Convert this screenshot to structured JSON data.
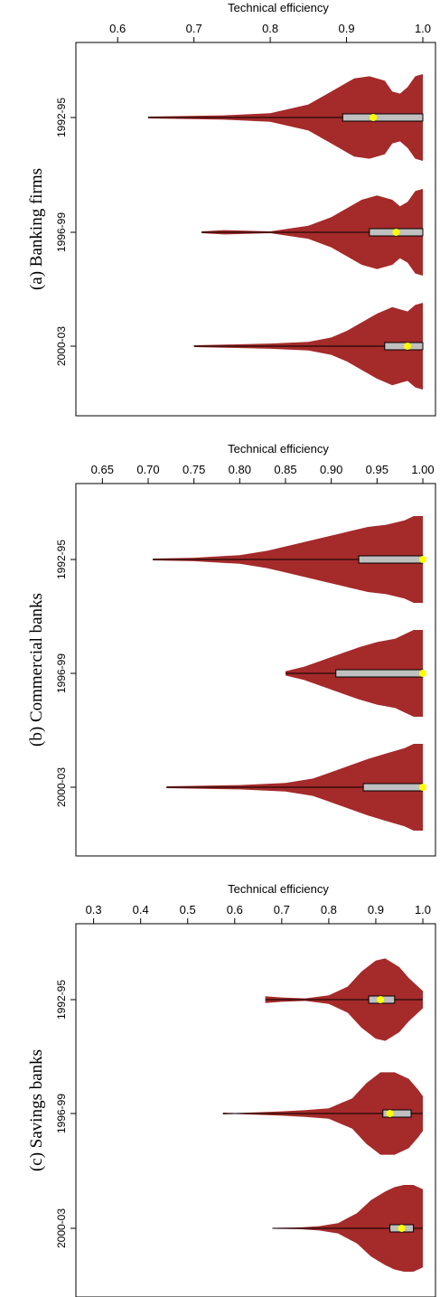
{
  "chart_data": [
    {
      "type": "violin",
      "title": "(a) Banking firms",
      "xlabel": "Technical efficiency",
      "xlim": [
        0.55,
        1.0
      ],
      "xticks": [
        0.6,
        0.7,
        0.8,
        0.9,
        1.0
      ],
      "xtick_labels": [
        "0.6",
        "0.7",
        "0.8",
        "0.9",
        "1.0"
      ],
      "categories": [
        "1992-95",
        "1996-99",
        "2000-03"
      ],
      "violins": [
        {
          "category": "1992-95",
          "min": 0.64,
          "q1": 0.895,
          "median": 0.935,
          "q3": 1.0,
          "max": 1.0,
          "density_x": [
            0.64,
            0.74,
            0.8,
            0.85,
            0.88,
            0.91,
            0.93,
            0.95,
            0.96,
            0.97,
            0.98,
            0.99,
            1.0
          ],
          "density_w": [
            0.02,
            0.05,
            0.1,
            0.3,
            0.6,
            0.9,
            0.95,
            0.85,
            0.6,
            0.55,
            0.7,
            0.95,
            1.0
          ]
        },
        {
          "category": "1996-99",
          "min": 0.71,
          "q1": 0.93,
          "median": 0.965,
          "q3": 1.0,
          "max": 1.0,
          "density_x": [
            0.71,
            0.74,
            0.8,
            0.85,
            0.88,
            0.9,
            0.92,
            0.94,
            0.96,
            0.97,
            0.98,
            0.99,
            1.0
          ],
          "density_w": [
            0.02,
            0.05,
            0.02,
            0.15,
            0.35,
            0.55,
            0.75,
            0.85,
            0.75,
            0.6,
            0.7,
            0.95,
            1.0
          ]
        },
        {
          "category": "2000-03",
          "min": 0.7,
          "q1": 0.95,
          "median": 0.98,
          "q3": 1.0,
          "max": 1.0,
          "density_x": [
            0.7,
            0.75,
            0.8,
            0.85,
            0.88,
            0.9,
            0.92,
            0.94,
            0.96,
            0.97,
            0.98,
            0.99,
            1.0
          ],
          "density_w": [
            0.02,
            0.04,
            0.06,
            0.1,
            0.2,
            0.35,
            0.55,
            0.75,
            0.9,
            0.85,
            0.8,
            0.95,
            1.0
          ]
        }
      ],
      "colors": {
        "violin": "#a52a2a",
        "box": "#c0c0c0",
        "median": "#ffff00"
      }
    },
    {
      "type": "violin",
      "title": "(b) Commercial banks",
      "xlabel": "Technical efficiency",
      "xlim": [
        0.625,
        1.0
      ],
      "xticks": [
        0.65,
        0.7,
        0.75,
        0.8,
        0.85,
        0.9,
        0.95,
        1.0
      ],
      "xtick_labels": [
        "0.65",
        "0.70",
        "0.75",
        "0.80",
        "0.85",
        "0.90",
        "0.95",
        "1.00"
      ],
      "categories": [
        "1992-95",
        "1996-99",
        "2000-03"
      ],
      "violins": [
        {
          "category": "1992-95",
          "min": 0.705,
          "q1": 0.93,
          "median": 1.0,
          "q3": 1.0,
          "max": 1.0,
          "density_x": [
            0.705,
            0.75,
            0.8,
            0.83,
            0.86,
            0.89,
            0.92,
            0.94,
            0.96,
            0.98,
            0.99,
            1.0
          ],
          "density_w": [
            0.02,
            0.04,
            0.1,
            0.2,
            0.35,
            0.5,
            0.65,
            0.75,
            0.8,
            0.9,
            1.0,
            1.0
          ]
        },
        {
          "category": "1996-99",
          "min": 0.85,
          "q1": 0.905,
          "median": 1.0,
          "q3": 1.0,
          "max": 1.0,
          "density_x": [
            0.85,
            0.87,
            0.89,
            0.91,
            0.93,
            0.95,
            0.97,
            0.98,
            0.99,
            1.0
          ],
          "density_w": [
            0.05,
            0.15,
            0.3,
            0.45,
            0.6,
            0.72,
            0.8,
            0.9,
            1.0,
            1.0
          ]
        },
        {
          "category": "2000-03",
          "min": 0.72,
          "q1": 0.935,
          "median": 1.0,
          "q3": 1.0,
          "max": 1.0,
          "density_x": [
            0.72,
            0.8,
            0.85,
            0.88,
            0.9,
            0.92,
            0.94,
            0.96,
            0.98,
            0.99,
            1.0
          ],
          "density_w": [
            0.02,
            0.05,
            0.1,
            0.2,
            0.35,
            0.5,
            0.65,
            0.78,
            0.9,
            1.0,
            1.0
          ]
        }
      ],
      "colors": {
        "violin": "#a52a2a",
        "box": "#c0c0c0",
        "median": "#ffff00"
      }
    },
    {
      "type": "violin",
      "title": "(c) Savings banks",
      "xlabel": "Technical efficiency",
      "xlim": [
        0.27,
        1.0
      ],
      "xticks": [
        0.3,
        0.4,
        0.5,
        0.6,
        0.7,
        0.8,
        0.9,
        1.0
      ],
      "xtick_labels": [
        "0.3",
        "0.4",
        "0.5",
        "0.6",
        "0.7",
        "0.8",
        "0.9",
        "1.0"
      ],
      "categories": [
        "1992-95",
        "1996-99",
        "2000-03"
      ],
      "violins": [
        {
          "category": "1992-95",
          "min": 0.665,
          "q1": 0.885,
          "median": 0.91,
          "q3": 0.94,
          "max": 1.0,
          "density_x": [
            0.665,
            0.7,
            0.75,
            0.8,
            0.84,
            0.87,
            0.9,
            0.92,
            0.95,
            0.97,
            0.99,
            1.0
          ],
          "density_w": [
            0.08,
            0.05,
            0.03,
            0.1,
            0.3,
            0.65,
            0.9,
            0.95,
            0.75,
            0.5,
            0.3,
            0.2
          ]
        },
        {
          "category": "1996-99",
          "min": 0.575,
          "q1": 0.915,
          "median": 0.93,
          "q3": 0.975,
          "max": 1.0,
          "density_x": [
            0.575,
            0.6,
            0.65,
            0.7,
            0.75,
            0.8,
            0.85,
            0.88,
            0.91,
            0.94,
            0.97,
            0.99,
            1.0
          ],
          "density_w": [
            0.02,
            0.01,
            0.03,
            0.05,
            0.08,
            0.12,
            0.35,
            0.7,
            0.95,
            0.95,
            0.8,
            0.55,
            0.4
          ]
        },
        {
          "category": "2000-03",
          "min": 0.68,
          "q1": 0.93,
          "median": 0.955,
          "q3": 0.98,
          "max": 1.0,
          "density_x": [
            0.68,
            0.74,
            0.78,
            0.82,
            0.86,
            0.89,
            0.92,
            0.94,
            0.96,
            0.98,
            1.0
          ],
          "density_w": [
            0.01,
            0.02,
            0.05,
            0.12,
            0.35,
            0.65,
            0.85,
            0.95,
            1.0,
            1.0,
            0.9
          ]
        }
      ],
      "colors": {
        "violin": "#a52a2a",
        "box": "#c0c0c0",
        "median": "#ffff00"
      }
    }
  ]
}
